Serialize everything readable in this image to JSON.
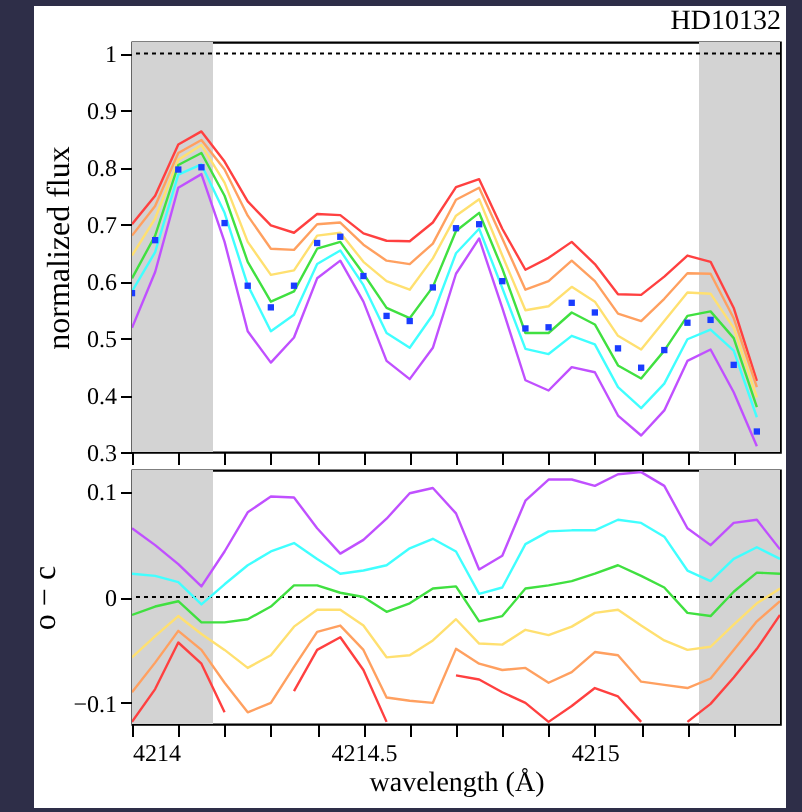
{
  "chart_data": [
    {
      "type": "line",
      "title": "HD10132",
      "ylabel": "normalized flux",
      "x": [
        4214.0,
        4214.05,
        4214.1,
        4214.15,
        4214.2,
        4214.25,
        4214.3,
        4214.35,
        4214.4,
        4214.45,
        4214.5,
        4214.55,
        4214.6,
        4214.65,
        4214.7,
        4214.75,
        4214.8,
        4214.85,
        4214.9,
        4214.95,
        4215.0,
        4215.05,
        4215.1,
        4215.15,
        4215.2,
        4215.25,
        4215.3,
        4215.35
      ],
      "series": [
        {
          "color": "#ff4040",
          "values": [
            0.7,
            0.75,
            0.84,
            0.863,
            0.81,
            0.74,
            0.698,
            0.685,
            0.718,
            0.716,
            0.684,
            0.671,
            0.67,
            0.703,
            0.765,
            0.779,
            0.692,
            0.62,
            0.641,
            0.669,
            0.63,
            0.577,
            0.576,
            0.608,
            0.645,
            0.634,
            0.553,
            0.425
          ]
        },
        {
          "color": "#ffa060",
          "values": [
            0.68,
            0.732,
            0.825,
            0.848,
            0.796,
            0.715,
            0.657,
            0.655,
            0.7,
            0.703,
            0.664,
            0.636,
            0.63,
            0.666,
            0.743,
            0.764,
            0.675,
            0.585,
            0.6,
            0.636,
            0.6,
            0.543,
            0.53,
            0.569,
            0.614,
            0.613,
            0.535,
            0.414
          ]
        },
        {
          "color": "#ffe070",
          "values": [
            0.645,
            0.71,
            0.813,
            0.839,
            0.773,
            0.669,
            0.611,
            0.619,
            0.68,
            0.685,
            0.634,
            0.6,
            0.585,
            0.64,
            0.715,
            0.744,
            0.645,
            0.549,
            0.556,
            0.59,
            0.564,
            0.504,
            0.48,
            0.53,
            0.58,
            0.578,
            0.518,
            0.396
          ]
        },
        {
          "color": "#40e040",
          "values": [
            0.605,
            0.68,
            0.804,
            0.825,
            0.75,
            0.634,
            0.564,
            0.582,
            0.657,
            0.669,
            0.613,
            0.553,
            0.535,
            0.59,
            0.688,
            0.72,
            0.622,
            0.509,
            0.509,
            0.545,
            0.524,
            0.452,
            0.429,
            0.478,
            0.539,
            0.547,
            0.5,
            0.379
          ]
        },
        {
          "color": "#40ffff",
          "values": [
            0.582,
            0.651,
            0.787,
            0.805,
            0.72,
            0.593,
            0.512,
            0.541,
            0.63,
            0.654,
            0.593,
            0.509,
            0.483,
            0.541,
            0.649,
            0.692,
            0.588,
            0.481,
            0.472,
            0.504,
            0.489,
            0.414,
            0.377,
            0.42,
            0.498,
            0.515,
            0.478,
            0.361
          ]
        },
        {
          "color": "#c050ff",
          "values": [
            0.518,
            0.616,
            0.764,
            0.788,
            0.669,
            0.512,
            0.457,
            0.501,
            0.605,
            0.636,
            0.564,
            0.46,
            0.428,
            0.483,
            0.613,
            0.675,
            0.553,
            0.426,
            0.408,
            0.449,
            0.44,
            0.364,
            0.329,
            0.373,
            0.46,
            0.48,
            0.405,
            0.31
          ]
        },
        {
          "type": "scatter",
          "marker": "square",
          "color": "#1a3cff",
          "values": [
            0.579,
            0.672,
            0.796,
            0.8,
            0.702,
            0.592,
            0.554,
            0.592,
            0.667,
            0.678,
            0.609,
            0.539,
            0.53,
            0.589,
            0.693,
            0.7,
            0.6,
            0.517,
            0.519,
            0.562,
            0.545,
            0.482,
            0.448,
            0.479,
            0.527,
            0.532,
            0.453,
            0.336
          ]
        }
      ],
      "xlim": [
        4214,
        4215.4
      ],
      "xticks": [
        {
          "value": 4214,
          "label": null
        },
        {
          "value": 4214.1,
          "label": null
        },
        {
          "value": 4214.2,
          "label": null
        },
        {
          "value": 4214.3,
          "label": null
        },
        {
          "value": 4214.4,
          "label": null
        },
        {
          "value": 4214.5,
          "label": null
        },
        {
          "value": 4214.6,
          "label": null
        },
        {
          "value": 4214.7,
          "label": null
        },
        {
          "value": 4214.8,
          "label": null
        },
        {
          "value": 4214.9,
          "label": null
        },
        {
          "value": 4215,
          "label": null
        },
        {
          "value": 4215.1,
          "label": null
        },
        {
          "value": 4215.2,
          "label": null
        },
        {
          "value": 4215.3,
          "label": null
        }
      ],
      "ylim": [
        0.3,
        1.02
      ],
      "yticks": [
        0.3,
        0.4,
        0.5,
        0.6,
        0.7,
        0.8,
        0.9,
        1
      ],
      "tick_labels": "y",
      "ref_lines": [
        {
          "axis": "y",
          "value": 1,
          "line_style": "dotted",
          "color": "#000000"
        }
      ],
      "bands": [
        {
          "axis": "x",
          "from": 4214,
          "to": 4214.175,
          "color": "#d3d3d3"
        },
        {
          "axis": "x",
          "from": 4215.225,
          "to": 4215.4,
          "color": "#d3d3d3"
        }
      ]
    },
    {
      "type": "line",
      "xlabel": "wavelength (Å)",
      "ylabel": "o − c",
      "x": [
        4214.0,
        4214.05,
        4214.1,
        4214.15,
        4214.2,
        4214.25,
        4214.3,
        4214.35,
        4214.4,
        4214.45,
        4214.5,
        4214.55,
        4214.6,
        4214.65,
        4214.7,
        4214.75,
        4214.8,
        4214.85,
        4214.9,
        4214.95,
        4215.0,
        4215.05,
        4215.1,
        4215.15,
        4215.2,
        4215.25,
        4215.3,
        4215.35,
        4215.4
      ],
      "series": [
        {
          "color": "#ff4040",
          "values": [
            -0.118,
            -0.087,
            -0.043,
            -0.063,
            -0.109,
            null,
            null,
            -0.089,
            -0.05,
            -0.038,
            -0.069,
            -0.118,
            null,
            null,
            -0.074,
            -0.078,
            -0.09,
            -0.1,
            -0.118,
            -0.103,
            -0.086,
            -0.094,
            -0.118,
            null,
            -0.118,
            -0.101,
            -0.076,
            -0.049,
            -0.017
          ]
        },
        {
          "color": "#ffa060",
          "values": [
            -0.09,
            -0.062,
            -0.032,
            -0.05,
            -0.081,
            -0.109,
            -0.1,
            -0.066,
            -0.033,
            -0.027,
            -0.05,
            -0.095,
            -0.098,
            -0.1,
            -0.049,
            -0.063,
            -0.069,
            -0.067,
            -0.081,
            -0.071,
            -0.052,
            -0.055,
            -0.08,
            -0.083,
            -0.086,
            -0.077,
            -0.05,
            -0.023,
            -0.004
          ]
        },
        {
          "color": "#ffe070",
          "values": [
            -0.057,
            -0.037,
            -0.018,
            -0.035,
            -0.05,
            -0.067,
            -0.055,
            -0.028,
            -0.012,
            -0.012,
            -0.027,
            -0.057,
            -0.055,
            -0.041,
            -0.021,
            -0.044,
            -0.045,
            -0.031,
            -0.036,
            -0.028,
            -0.015,
            -0.012,
            -0.027,
            -0.041,
            -0.05,
            -0.047,
            -0.026,
            -0.006,
            0.008
          ]
        },
        {
          "color": "#40e040",
          "values": [
            -0.017,
            -0.009,
            -0.004,
            -0.024,
            -0.024,
            -0.021,
            -0.009,
            0.011,
            0.011,
            0.004,
            0,
            -0.014,
            -0.006,
            0.008,
            0.01,
            -0.023,
            -0.018,
            0.008,
            0.011,
            0.015,
            0.022,
            0.03,
            0.02,
            0.009,
            -0.015,
            -0.018,
            0.005,
            0.023,
            0.022
          ]
        },
        {
          "color": "#40ffff",
          "values": [
            0.022,
            0.02,
            0.014,
            -0.007,
            0.012,
            0.03,
            0.043,
            0.051,
            0.036,
            0.022,
            0.025,
            0.03,
            0.046,
            0.055,
            0.043,
            0.003,
            0.009,
            0.05,
            0.062,
            0.063,
            0.063,
            0.073,
            0.07,
            0.057,
            0.025,
            0.015,
            0.036,
            0.047,
            0.036
          ]
        },
        {
          "color": "#c050ff",
          "values": [
            0.065,
            0.049,
            0.031,
            0.01,
            0.043,
            0.08,
            0.095,
            0.094,
            0.065,
            0.041,
            0.054,
            0.074,
            0.098,
            0.103,
            0.079,
            0.026,
            0.039,
            0.091,
            0.111,
            0.111,
            0.105,
            0.116,
            0.118,
            0.105,
            0.065,
            0.049,
            0.07,
            0.073,
            0.045
          ]
        }
      ],
      "xlim": [
        4214,
        4215.4
      ],
      "xticks": [
        4214,
        {
          "value": 4214.1,
          "label": null
        },
        {
          "value": 4214.2,
          "label": null
        },
        {
          "value": 4214.3,
          "label": null
        },
        {
          "value": 4214.4,
          "label": null
        },
        4214.5,
        {
          "value": 4214.6,
          "label": null
        },
        {
          "value": 4214.7,
          "label": null
        },
        {
          "value": 4214.8,
          "label": null
        },
        {
          "value": 4214.9,
          "label": null
        },
        4215,
        {
          "value": 4215.1,
          "label": null
        },
        {
          "value": 4215.2,
          "label": null
        },
        {
          "value": 4215.3,
          "label": null
        }
      ],
      "ylim": [
        -0.12,
        0.12
      ],
      "yticks": [
        {
          "value": -0.1,
          "label": "−0.1"
        },
        0,
        0.1
      ],
      "ref_lines": [
        {
          "axis": "y",
          "value": 0,
          "line_style": "dotted",
          "color": "#000000"
        }
      ],
      "bands": [
        {
          "axis": "x",
          "from": 4214,
          "to": 4214.175,
          "color": "#d3d3d3"
        },
        {
          "axis": "x",
          "from": 4215.225,
          "to": 4215.4,
          "color": "#d3d3d3"
        }
      ]
    }
  ]
}
